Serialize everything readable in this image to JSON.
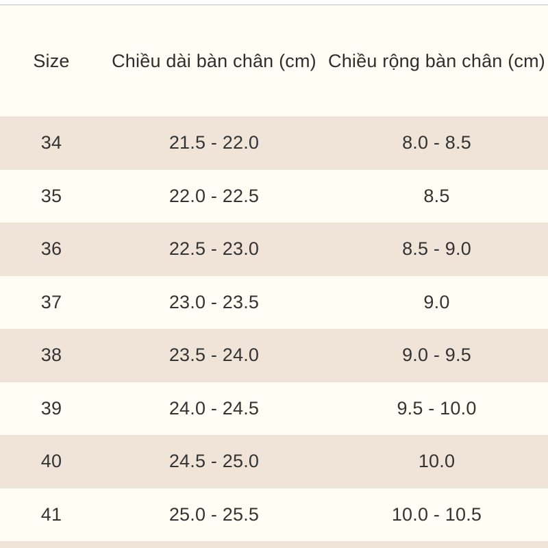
{
  "theme": {
    "page_bg": "#FFFDF4",
    "stripe_bg": "#F0E4D8",
    "top_bar_bg": "#FFFFFF",
    "divider": "#DCDCDC",
    "text": "#333333"
  },
  "table": {
    "columns": [
      {
        "id": "size",
        "label": "Size"
      },
      {
        "id": "foot_length",
        "label": "Chiều dài bàn chân (cm)"
      },
      {
        "id": "foot_width",
        "label": "Chiều rộng bàn chân (cm)"
      }
    ],
    "rows": [
      {
        "size": "34",
        "length_cm": "21.5 - 22.0",
        "width_cm": "8.0 - 8.5"
      },
      {
        "size": "35",
        "length_cm": "22.0 - 22.5",
        "width_cm": "8.5"
      },
      {
        "size": "36",
        "length_cm": "22.5 - 23.0",
        "width_cm": "8.5 - 9.0"
      },
      {
        "size": "37",
        "length_cm": "23.0 - 23.5",
        "width_cm": "9.0"
      },
      {
        "size": "38",
        "length_cm": "23.5 - 24.0",
        "width_cm": "9.0 - 9.5"
      },
      {
        "size": "39",
        "length_cm": "24.0 - 24.5",
        "width_cm": "9.5 - 10.0"
      },
      {
        "size": "40",
        "length_cm": "24.5 - 25.0",
        "width_cm": "10.0"
      },
      {
        "size": "41",
        "length_cm": "25.0 - 25.5",
        "width_cm": "10.0 - 10.5"
      }
    ]
  }
}
